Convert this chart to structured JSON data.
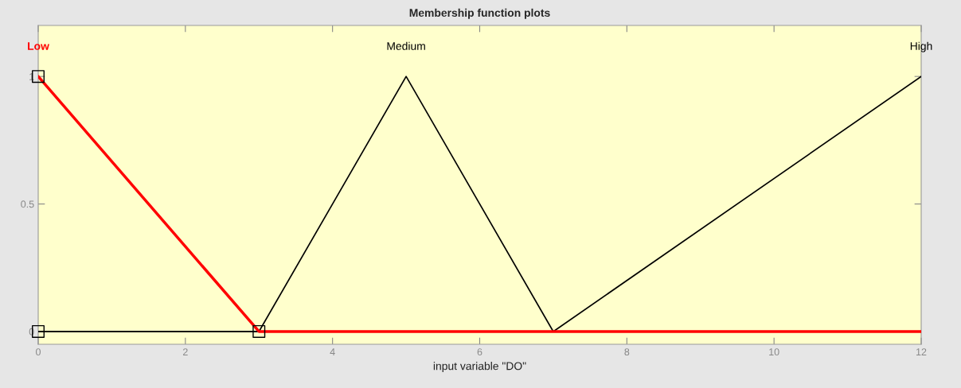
{
  "chart_data": {
    "type": "line",
    "title": "Membership function plots",
    "xlabel": "input variable \"DO\"",
    "xlim": [
      0,
      12
    ],
    "xticks": [
      0,
      2,
      4,
      6,
      8,
      10,
      12
    ],
    "ylim": [
      -0.05,
      1.2
    ],
    "yticks": [
      0,
      0.5,
      1
    ],
    "grid": false,
    "legend": false,
    "marker": "none",
    "series": [
      {
        "name": "Low",
        "color": "#ff0000",
        "x": [
          0,
          3,
          12
        ],
        "values": [
          1,
          0,
          0
        ]
      },
      {
        "name": "Medium",
        "color": "#000000",
        "x": [
          0,
          3,
          5,
          7,
          12
        ],
        "values": [
          0,
          0,
          1,
          0,
          0
        ]
      },
      {
        "name": "High",
        "color": "#000000",
        "x": [
          0,
          7,
          12
        ],
        "values": [
          0,
          0,
          1
        ]
      },
      {
        "type": "scatter",
        "color": "#000000",
        "marker": "square",
        "x": [
          0,
          0,
          3
        ],
        "values": [
          1,
          0,
          0
        ]
      }
    ]
  }
}
